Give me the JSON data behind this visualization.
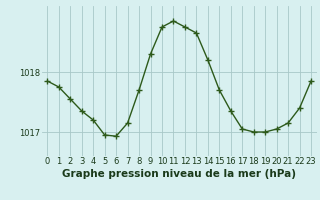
{
  "x": [
    0,
    1,
    2,
    3,
    4,
    5,
    6,
    7,
    8,
    9,
    10,
    11,
    12,
    13,
    14,
    15,
    16,
    17,
    18,
    19,
    20,
    21,
    22,
    23
  ],
  "y": [
    1017.85,
    1017.75,
    1017.55,
    1017.35,
    1017.2,
    1016.95,
    1016.93,
    1017.15,
    1017.7,
    1018.3,
    1018.75,
    1018.85,
    1018.75,
    1018.65,
    1018.2,
    1017.7,
    1017.35,
    1017.05,
    1017.0,
    1017.0,
    1017.05,
    1017.15,
    1017.4,
    1017.85
  ],
  "line_color": "#2d5a1b",
  "marker_color": "#2d5a1b",
  "bg_color": "#d8f0f0",
  "grid_color": "#a8c8c8",
  "title": "Graphe pression niveau de la mer (hPa)",
  "xlabel_ticks": [
    0,
    1,
    2,
    3,
    4,
    5,
    6,
    7,
    8,
    9,
    10,
    11,
    12,
    13,
    14,
    15,
    16,
    17,
    18,
    19,
    20,
    21,
    22,
    23
  ],
  "yticks": [
    1017,
    1018
  ],
  "ylim": [
    1016.6,
    1019.1
  ],
  "xlim": [
    -0.5,
    23.5
  ],
  "title_fontsize": 7.5,
  "tick_fontsize": 6.0,
  "title_color": "#1a3a1a"
}
